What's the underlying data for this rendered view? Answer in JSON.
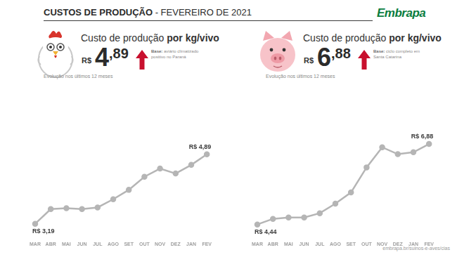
{
  "header": {
    "title": "CUSTOS DE PRODUÇÃO",
    "subtitle": "- FEVEREIRO DE 2021",
    "logo": "Embrapa"
  },
  "panels": [
    {
      "heading": "Custo de produção",
      "heading_bold": "por kg/vivo",
      "currency": "R$",
      "price": "4,89",
      "base_label": "Base:",
      "base_text": "aviário climatizado positivo no Paraná"
    },
    {
      "heading": "Custo de produção",
      "heading_bold": "por kg/vivo",
      "currency": "R$",
      "price": "6,88",
      "base_label": "Base:",
      "base_text": "ciclo completo em Santa Catarina"
    }
  ],
  "chart_data": [
    {
      "type": "line",
      "title": "Evolução nos últimos 12 meses",
      "categories": [
        "MAR",
        "ABR",
        "MAI",
        "JUN",
        "JUL",
        "AGO",
        "SET",
        "OUT",
        "NOV",
        "DEZ",
        "JAN",
        "FEV"
      ],
      "values": [
        3.19,
        3.55,
        3.57,
        3.55,
        3.59,
        3.79,
        4.02,
        4.34,
        4.54,
        4.42,
        4.63,
        4.89
      ],
      "value_labels": [
        "R$ 3,19",
        null,
        null,
        null,
        null,
        null,
        null,
        null,
        null,
        null,
        null,
        "R$ 4,89"
      ],
      "color": "#b5b5b5",
      "marker": "circle",
      "ylim": [
        2.9,
        5.4
      ],
      "grid": false,
      "tick_labels": "x"
    },
    {
      "type": "line",
      "title": "Evolução nos últimos 12 meses",
      "categories": [
        "MAR",
        "ABR",
        "MAI",
        "JUN",
        "JUL",
        "AGO",
        "SET",
        "OUT",
        "NOV",
        "DEZ",
        "JAN",
        "FEV"
      ],
      "values": [
        4.44,
        4.61,
        4.65,
        4.65,
        4.78,
        5.07,
        5.41,
        6.17,
        6.78,
        6.57,
        6.63,
        6.88
      ],
      "value_labels": [
        "R$ 4,44",
        null,
        null,
        null,
        null,
        null,
        null,
        null,
        null,
        null,
        null,
        "R$ 6,88"
      ],
      "color": "#b5b5b5",
      "marker": "circle",
      "ylim": [
        4.1,
        7.2
      ],
      "grid": false,
      "tick_labels": "x"
    }
  ],
  "footer": "embrapa.br/suinos-e-aves/cias"
}
